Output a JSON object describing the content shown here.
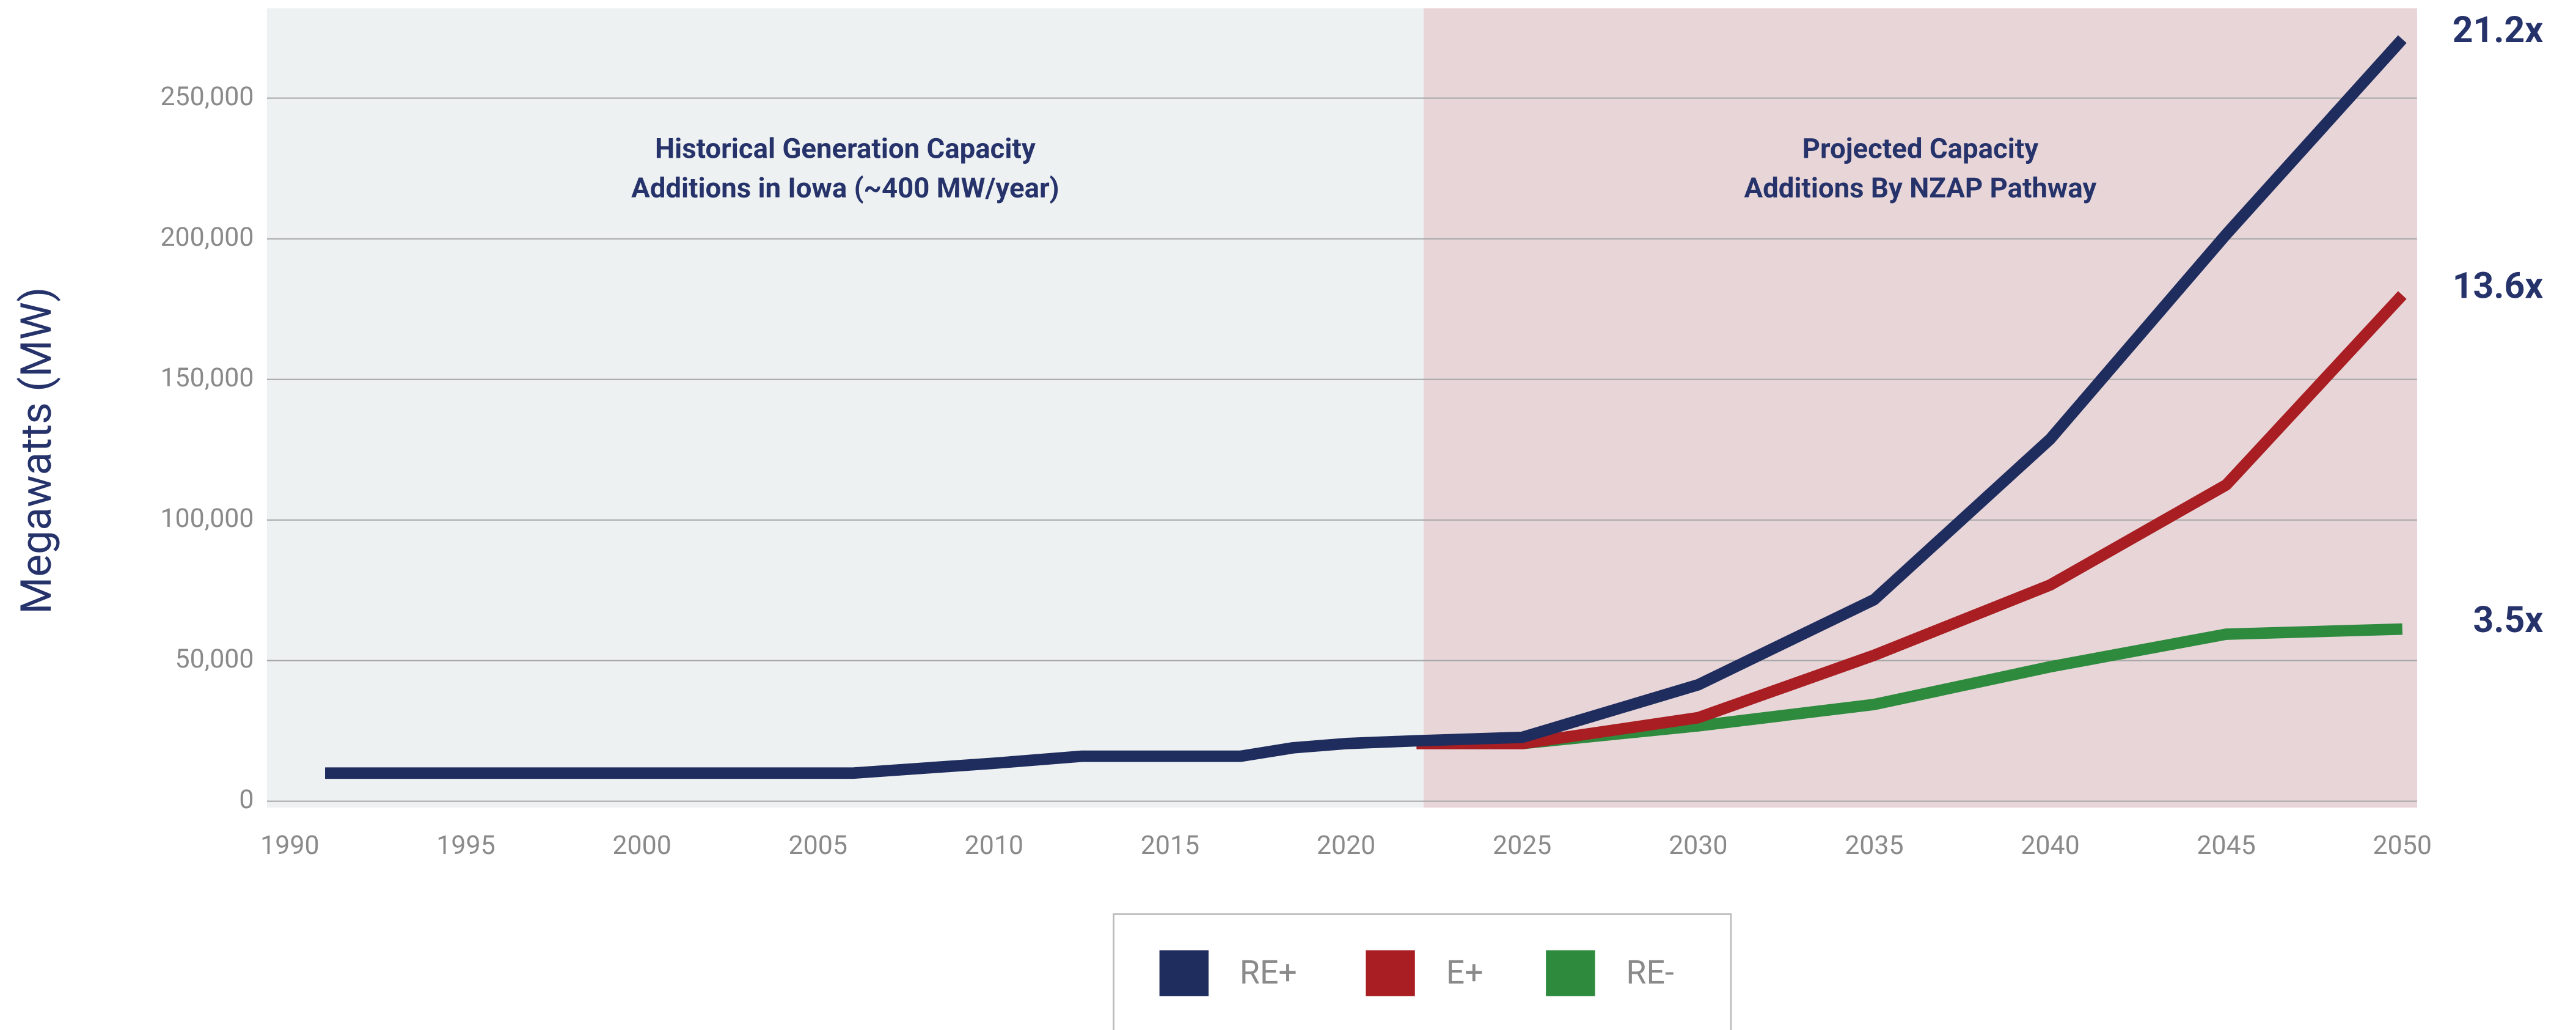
{
  "chart_data": {
    "type": "line",
    "y_label": "Megawatts (MW)",
    "x": [
      1991,
      2006,
      2010,
      2012.5,
      2017,
      2018.5,
      2020,
      2022,
      2025,
      2030,
      2035,
      2040,
      2045,
      2050
    ],
    "series": [
      {
        "name": "RE+",
        "color": "#1f2d5e",
        "end_label": "21.2x",
        "values": [
          10000,
          10000,
          13500,
          16000,
          16000,
          19000,
          20500,
          21500,
          22700,
          41400,
          71700,
          128800,
          201600,
          271000
        ]
      },
      {
        "name": "E+",
        "color": "#a81e22",
        "end_label": "13.6x",
        "values": [
          null,
          null,
          null,
          null,
          null,
          null,
          null,
          20500,
          20500,
          29700,
          51900,
          76900,
          112500,
          180000
        ]
      },
      {
        "name": "RE-",
        "color": "#2e8b3e",
        "end_label": "3.5x",
        "values": [
          null,
          null,
          null,
          null,
          null,
          null,
          null,
          null,
          20500,
          26800,
          34400,
          47800,
          59400,
          61200
        ]
      }
    ],
    "xlim": [
      1989.35,
      2050.42
    ],
    "ylim": [
      -2300,
      282000
    ],
    "xticks": [
      1990,
      1995,
      2000,
      2005,
      2010,
      2015,
      2020,
      2025,
      2030,
      2035,
      2040,
      2045,
      2050
    ],
    "yticks": [
      {
        "value": 0,
        "label": "0"
      },
      {
        "value": 50000,
        "label": "50,000"
      },
      {
        "value": 100000,
        "label": "100,000"
      },
      {
        "value": 150000,
        "label": "150,000"
      },
      {
        "value": 200000,
        "label": "200,000"
      },
      {
        "value": 250000,
        "label": "250,000"
      }
    ],
    "grid": true,
    "projection_start": 2022.2,
    "historical_color": "#eef1f2",
    "projected_color": "#e8d5d8",
    "annotations": [
      {
        "lines": [
          "Historical Generation Capacity",
          "Additions in Iowa (~400 MW/year)"
        ]
      },
      {
        "lines": [
          "Projected Capacity",
          "Additions By NZAP Pathway"
        ]
      }
    ]
  }
}
